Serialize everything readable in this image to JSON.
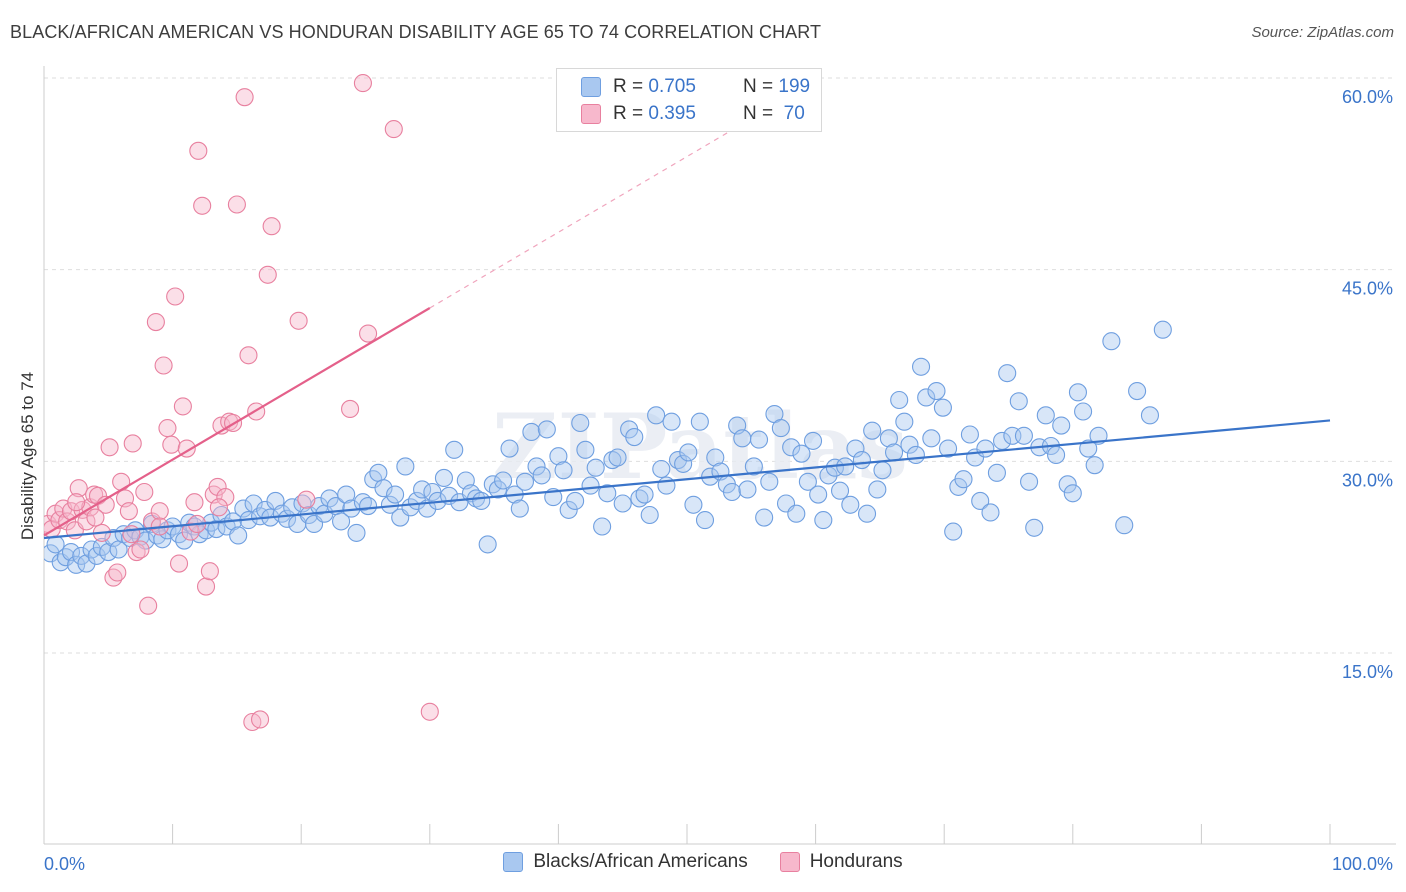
{
  "header": {
    "title": "BLACK/AFRICAN AMERICAN VS HONDURAN DISABILITY AGE 65 TO 74 CORRELATION CHART",
    "source": "Source: ZipAtlas.com"
  },
  "legend": {
    "rows": [
      {
        "r_label": "R = ",
        "r_value": "0.705",
        "n_label": "N = ",
        "n_value": "199",
        "color": "#a9c8f0",
        "border": "#6f9fe0"
      },
      {
        "r_label": "R = ",
        "r_value": "0.395",
        "n_label": "N = ",
        "n_value": " 70",
        "color": "#f7b8cc",
        "border": "#e8809f"
      }
    ]
  },
  "bottom_legend": [
    {
      "label": "Blacks/African Americans",
      "color": "#a9c8f0",
      "border": "#6f9fe0"
    },
    {
      "label": "Hondurans",
      "color": "#f7b8cc",
      "border": "#e8809f"
    }
  ],
  "chart_data": {
    "type": "scatter",
    "title": "BLACK/AFRICAN AMERICAN VS HONDURAN DISABILITY AGE 65 TO 74 CORRELATION CHART",
    "xlabel": "",
    "ylabel": "Disability Age 65 to 74",
    "xlim": [
      0,
      100
    ],
    "ylim": [
      0,
      63
    ],
    "x_tick_labels": [
      {
        "value": 0,
        "label": "0.0%"
      },
      {
        "value": 100,
        "label": "100.0%"
      }
    ],
    "y_tick_labels": [
      {
        "value": 15,
        "label": "15.0%"
      },
      {
        "value": 30,
        "label": "30.0%"
      },
      {
        "value": 45,
        "label": "45.0%"
      },
      {
        "value": 60,
        "label": "60.0%"
      }
    ],
    "grid": true,
    "legend_position": "top-center",
    "series": [
      {
        "name": "Blacks/African Americans",
        "color": "#a9c8f0",
        "stroke": "#6f9fe0",
        "trend": {
          "x0": 0,
          "y0": 24.0,
          "x1": 100,
          "y1": 33.2,
          "color": "#3a74c9"
        },
        "points": [
          [
            0.5,
            22.8
          ],
          [
            0.9,
            23.5
          ],
          [
            1.3,
            22.1
          ],
          [
            1.7,
            22.5
          ],
          [
            2.1,
            22.9
          ],
          [
            2.5,
            21.9
          ],
          [
            2.9,
            22.6
          ],
          [
            3.3,
            22.0
          ],
          [
            3.7,
            23.1
          ],
          [
            4.1,
            22.6
          ],
          [
            4.5,
            23.3
          ],
          [
            5.0,
            22.9
          ],
          [
            5.4,
            24.0
          ],
          [
            5.8,
            23.1
          ],
          [
            6.2,
            24.3
          ],
          [
            6.7,
            24.0
          ],
          [
            7.1,
            24.6
          ],
          [
            7.5,
            24.1
          ],
          [
            7.9,
            23.8
          ],
          [
            8.4,
            25.1
          ],
          [
            8.8,
            24.2
          ],
          [
            9.2,
            23.9
          ],
          [
            9.6,
            24.6
          ],
          [
            10.0,
            24.9
          ],
          [
            10.5,
            24.3
          ],
          [
            10.9,
            23.8
          ],
          [
            11.3,
            25.2
          ],
          [
            11.7,
            24.9
          ],
          [
            12.1,
            24.3
          ],
          [
            12.6,
            24.6
          ],
          [
            13.0,
            25.2
          ],
          [
            13.4,
            24.7
          ],
          [
            13.8,
            25.8
          ],
          [
            14.2,
            24.9
          ],
          [
            14.7,
            25.3
          ],
          [
            15.1,
            24.2
          ],
          [
            15.5,
            26.3
          ],
          [
            15.9,
            25.4
          ],
          [
            16.3,
            26.7
          ],
          [
            16.8,
            25.7
          ],
          [
            17.2,
            26.2
          ],
          [
            17.6,
            25.6
          ],
          [
            18.0,
            26.9
          ],
          [
            18.5,
            25.9
          ],
          [
            18.9,
            25.5
          ],
          [
            19.3,
            26.4
          ],
          [
            19.7,
            25.1
          ],
          [
            20.1,
            26.7
          ],
          [
            20.6,
            25.8
          ],
          [
            21.0,
            25.1
          ],
          [
            21.4,
            26.5
          ],
          [
            21.8,
            25.9
          ],
          [
            22.2,
            27.1
          ],
          [
            22.7,
            26.5
          ],
          [
            23.1,
            25.3
          ],
          [
            23.5,
            27.4
          ],
          [
            23.9,
            26.3
          ],
          [
            24.3,
            24.4
          ],
          [
            24.8,
            26.8
          ],
          [
            25.2,
            26.5
          ],
          [
            25.6,
            28.6
          ],
          [
            26.0,
            29.1
          ],
          [
            26.4,
            27.9
          ],
          [
            26.9,
            26.6
          ],
          [
            27.3,
            27.4
          ],
          [
            27.7,
            25.6
          ],
          [
            28.1,
            29.6
          ],
          [
            28.5,
            26.4
          ],
          [
            29.0,
            26.9
          ],
          [
            29.4,
            27.8
          ],
          [
            29.8,
            26.3
          ],
          [
            30.2,
            27.6
          ],
          [
            30.6,
            26.9
          ],
          [
            31.1,
            28.7
          ],
          [
            31.5,
            27.3
          ],
          [
            31.9,
            30.9
          ],
          [
            32.3,
            26.8
          ],
          [
            32.8,
            28.5
          ],
          [
            33.2,
            27.5
          ],
          [
            33.6,
            27.1
          ],
          [
            34.0,
            26.9
          ],
          [
            34.5,
            23.5
          ],
          [
            34.9,
            28.2
          ],
          [
            35.3,
            27.8
          ],
          [
            35.7,
            28.5
          ],
          [
            36.2,
            31.0
          ],
          [
            36.6,
            27.4
          ],
          [
            37.0,
            26.3
          ],
          [
            37.4,
            28.4
          ],
          [
            37.9,
            32.3
          ],
          [
            38.3,
            29.6
          ],
          [
            38.7,
            28.9
          ],
          [
            39.1,
            32.5
          ],
          [
            39.6,
            27.2
          ],
          [
            40.0,
            30.4
          ],
          [
            40.4,
            29.3
          ],
          [
            40.8,
            26.2
          ],
          [
            41.3,
            26.9
          ],
          [
            41.7,
            33.0
          ],
          [
            42.1,
            30.9
          ],
          [
            42.5,
            28.1
          ],
          [
            42.9,
            29.5
          ],
          [
            43.4,
            24.9
          ],
          [
            43.8,
            27.5
          ],
          [
            44.2,
            30.1
          ],
          [
            44.6,
            30.3
          ],
          [
            45.0,
            26.7
          ],
          [
            45.5,
            32.5
          ],
          [
            45.9,
            31.9
          ],
          [
            46.3,
            27.1
          ],
          [
            46.7,
            27.4
          ],
          [
            47.1,
            25.8
          ],
          [
            47.6,
            33.6
          ],
          [
            48.0,
            29.4
          ],
          [
            48.4,
            28.1
          ],
          [
            48.8,
            33.1
          ],
          [
            49.3,
            30.1
          ],
          [
            49.7,
            29.8
          ],
          [
            50.1,
            30.7
          ],
          [
            50.5,
            26.6
          ],
          [
            51.0,
            33.1
          ],
          [
            51.4,
            25.4
          ],
          [
            51.8,
            28.8
          ],
          [
            52.2,
            30.3
          ],
          [
            52.6,
            29.2
          ],
          [
            53.1,
            28.2
          ],
          [
            53.5,
            27.6
          ],
          [
            53.9,
            32.8
          ],
          [
            54.3,
            31.8
          ],
          [
            54.7,
            27.8
          ],
          [
            55.2,
            29.6
          ],
          [
            55.6,
            31.7
          ],
          [
            56.0,
            25.6
          ],
          [
            56.4,
            28.4
          ],
          [
            56.8,
            33.7
          ],
          [
            57.3,
            32.6
          ],
          [
            57.7,
            26.7
          ],
          [
            58.1,
            31.1
          ],
          [
            58.5,
            25.9
          ],
          [
            58.9,
            30.6
          ],
          [
            59.4,
            28.4
          ],
          [
            59.8,
            31.6
          ],
          [
            60.2,
            27.4
          ],
          [
            60.6,
            25.4
          ],
          [
            61.0,
            28.9
          ],
          [
            61.5,
            29.5
          ],
          [
            61.9,
            27.7
          ],
          [
            62.3,
            29.6
          ],
          [
            62.7,
            26.6
          ],
          [
            63.1,
            31.0
          ],
          [
            63.6,
            30.1
          ],
          [
            64.0,
            25.9
          ],
          [
            64.4,
            32.4
          ],
          [
            64.8,
            27.8
          ],
          [
            65.2,
            29.3
          ],
          [
            65.7,
            31.8
          ],
          [
            66.1,
            30.7
          ],
          [
            66.5,
            34.8
          ],
          [
            66.9,
            33.1
          ],
          [
            67.3,
            31.3
          ],
          [
            67.8,
            30.5
          ],
          [
            68.2,
            37.4
          ],
          [
            68.6,
            35.0
          ],
          [
            69.0,
            31.8
          ],
          [
            69.4,
            35.5
          ],
          [
            69.9,
            34.2
          ],
          [
            70.3,
            31.0
          ],
          [
            70.7,
            24.5
          ],
          [
            71.1,
            28.0
          ],
          [
            71.5,
            28.6
          ],
          [
            72.0,
            32.1
          ],
          [
            72.4,
            30.3
          ],
          [
            72.8,
            26.9
          ],
          [
            73.2,
            31.0
          ],
          [
            73.6,
            26.0
          ],
          [
            74.1,
            29.1
          ],
          [
            74.5,
            31.6
          ],
          [
            74.9,
            36.9
          ],
          [
            75.3,
            32.0
          ],
          [
            75.8,
            34.7
          ],
          [
            76.2,
            32.0
          ],
          [
            76.6,
            28.4
          ],
          [
            77.0,
            24.8
          ],
          [
            77.4,
            31.1
          ],
          [
            77.9,
            33.6
          ],
          [
            78.3,
            31.2
          ],
          [
            78.7,
            30.5
          ],
          [
            79.1,
            32.8
          ],
          [
            79.6,
            28.2
          ],
          [
            80.0,
            27.5
          ],
          [
            80.4,
            35.4
          ],
          [
            80.8,
            33.9
          ],
          [
            81.2,
            31.0
          ],
          [
            81.7,
            29.7
          ],
          [
            82.0,
            32.0
          ],
          [
            83.0,
            39.4
          ],
          [
            84.0,
            25.0
          ],
          [
            85.0,
            35.5
          ],
          [
            86.0,
            33.6
          ],
          [
            87.0,
            40.3
          ]
        ]
      },
      {
        "name": "Hondurans",
        "color": "#f7b8cc",
        "stroke": "#e8809f",
        "trend": {
          "x0": 0,
          "y0": 24.2,
          "x1": 30,
          "y1": 42.0,
          "dash_to_x": 57,
          "dash_to_y": 58.0,
          "color": "#e4608a"
        },
        "points": [
          [
            0.3,
            25.1
          ],
          [
            0.6,
            24.7
          ],
          [
            0.9,
            25.9
          ],
          [
            1.2,
            25.4
          ],
          [
            1.5,
            26.3
          ],
          [
            1.8,
            25.3
          ],
          [
            2.1,
            26.1
          ],
          [
            2.4,
            24.6
          ],
          [
            2.7,
            27.9
          ],
          [
            3.0,
            26.2
          ],
          [
            3.3,
            25.3
          ],
          [
            3.6,
            26.4
          ],
          [
            3.9,
            27.4
          ],
          [
            4.2,
            27.3
          ],
          [
            4.5,
            24.4
          ],
          [
            4.8,
            26.6
          ],
          [
            5.1,
            31.1
          ],
          [
            5.4,
            20.9
          ],
          [
            5.7,
            21.3
          ],
          [
            6.0,
            28.4
          ],
          [
            6.3,
            27.1
          ],
          [
            6.6,
            26.1
          ],
          [
            6.9,
            31.4
          ],
          [
            7.2,
            22.9
          ],
          [
            7.5,
            23.1
          ],
          [
            7.8,
            27.6
          ],
          [
            8.1,
            18.7
          ],
          [
            8.4,
            25.3
          ],
          [
            8.7,
            40.9
          ],
          [
            9.0,
            26.1
          ],
          [
            9.3,
            37.5
          ],
          [
            9.6,
            32.6
          ],
          [
            9.9,
            31.3
          ],
          [
            10.2,
            42.9
          ],
          [
            10.5,
            22.0
          ],
          [
            10.8,
            34.3
          ],
          [
            11.1,
            31.0
          ],
          [
            11.4,
            24.5
          ],
          [
            11.7,
            26.8
          ],
          [
            12.0,
            54.3
          ],
          [
            12.3,
            50.0
          ],
          [
            12.6,
            20.2
          ],
          [
            12.9,
            21.4
          ],
          [
            13.2,
            27.4
          ],
          [
            13.5,
            28.0
          ],
          [
            13.8,
            32.8
          ],
          [
            14.1,
            27.2
          ],
          [
            14.4,
            33.1
          ],
          [
            14.7,
            33.0
          ],
          [
            15.0,
            50.1
          ],
          [
            15.6,
            58.5
          ],
          [
            15.9,
            38.3
          ],
          [
            16.2,
            9.6
          ],
          [
            16.5,
            33.9
          ],
          [
            16.8,
            9.8
          ],
          [
            17.4,
            44.6
          ],
          [
            17.7,
            48.4
          ],
          [
            19.8,
            41.0
          ],
          [
            20.4,
            27.0
          ],
          [
            23.8,
            34.1
          ],
          [
            24.8,
            59.6
          ],
          [
            25.2,
            40.0
          ],
          [
            27.2,
            56.0
          ],
          [
            30.0,
            10.4
          ],
          [
            2.5,
            26.8
          ],
          [
            4.0,
            25.6
          ],
          [
            6.8,
            24.3
          ],
          [
            9.0,
            24.9
          ],
          [
            11.9,
            25.1
          ],
          [
            13.6,
            26.4
          ]
        ]
      }
    ]
  }
}
